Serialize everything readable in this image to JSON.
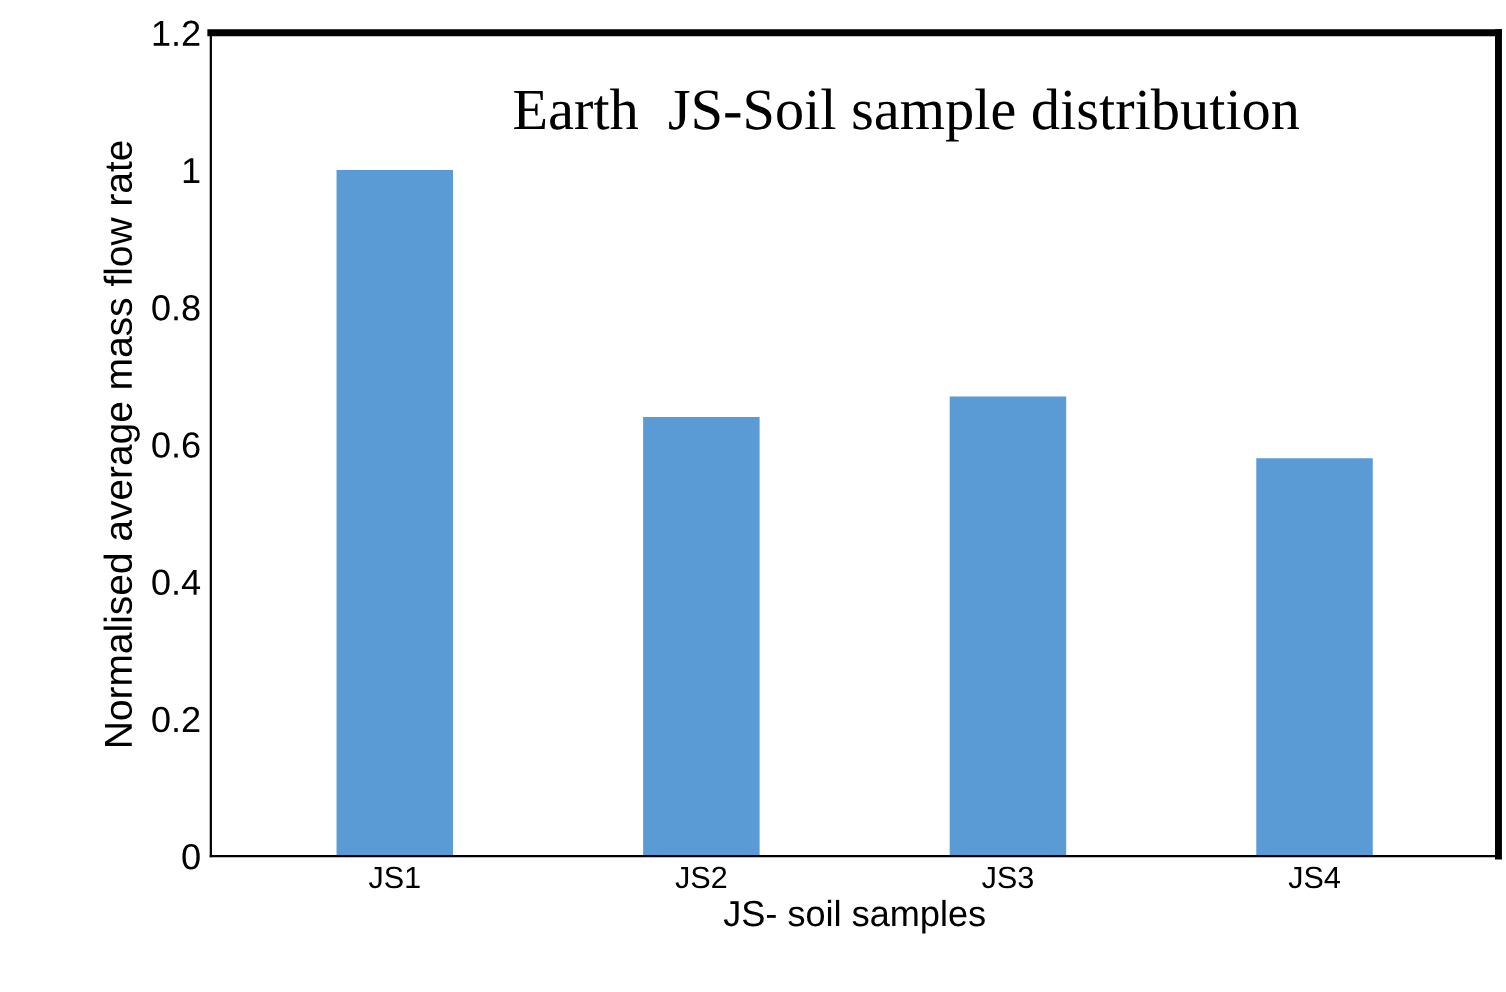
{
  "chart_data": {
    "type": "bar",
    "title": "Earth  JS-Soil sample distribution",
    "xlabel": "JS- soil samples",
    "ylabel": "Normalised average mass flow rate",
    "categories": [
      "JS1",
      "JS2",
      "JS3",
      "JS4"
    ],
    "values": [
      1.0,
      0.64,
      0.67,
      0.58
    ],
    "color": "#5b9bd5",
    "ylim": [
      0,
      1.2
    ],
    "yticks": [
      0,
      0.2,
      0.4,
      0.6,
      0.8,
      1,
      1.2
    ],
    "grid": false,
    "legend": false
  }
}
